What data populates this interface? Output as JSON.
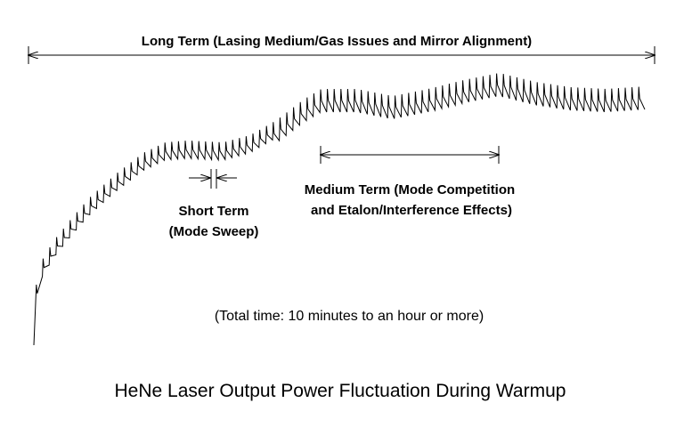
{
  "title": "HeNe Laser Output Power Fluctuation During Warmup",
  "long_term": "Long Term (Lasing Medium/Gas Issues and Mirror Alignment)",
  "medium_term": [
    "Medium Term (Mode Competition",
    "and Etalon/Interference Effects)"
  ],
  "short_term": [
    "Short Term",
    "(Mode Sweep)"
  ],
  "total_time": "(Total time: 10 minutes to an hour or more)"
}
